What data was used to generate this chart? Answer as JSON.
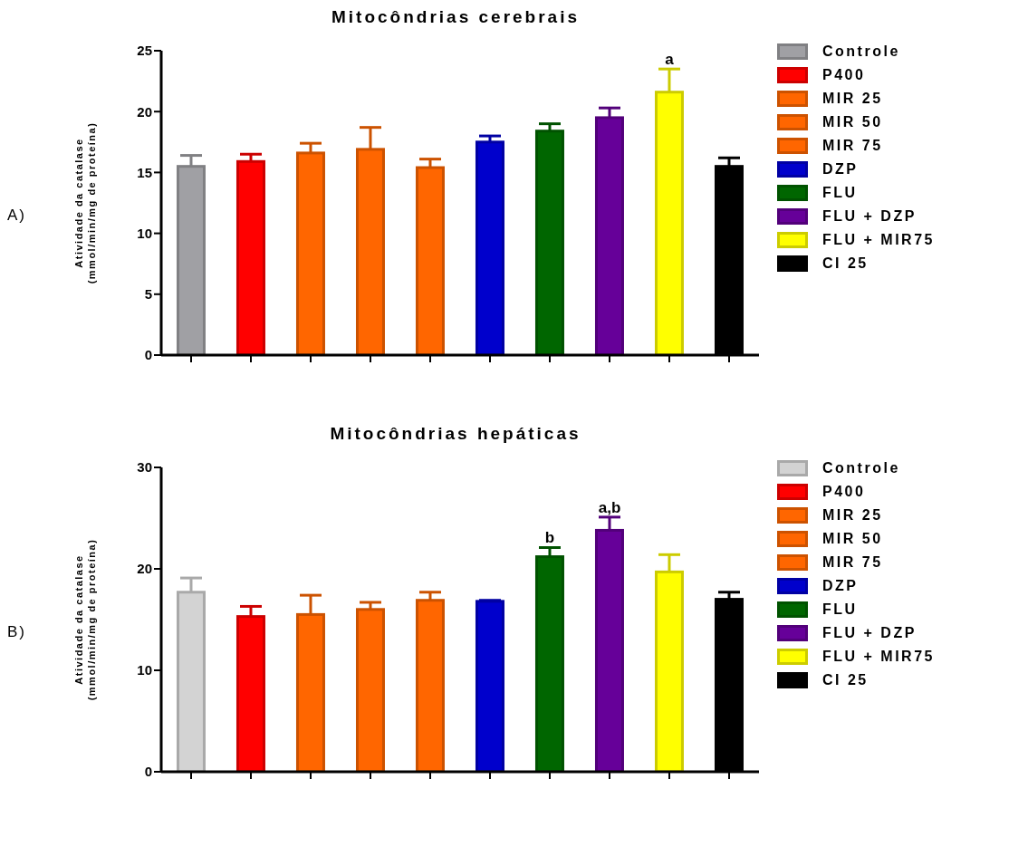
{
  "chart_data": [
    {
      "type": "bar",
      "title": "Mitocôndrias cerebrais",
      "ylabel": "Atividade da catalase\n(mmol/min/mg de proteína)",
      "categories": [
        null,
        null,
        null,
        null,
        null,
        null,
        null,
        null,
        null,
        null
      ],
      "series": [
        {
          "name": "Controle",
          "color": "#a0a0a4",
          "values": [
            15.5,
            null,
            null,
            null,
            null,
            null,
            null,
            null,
            null,
            null
          ],
          "errors": [
            [
              15.5,
              16.4
            ],
            null,
            null,
            null,
            null,
            null,
            null,
            null,
            null,
            null
          ]
        },
        {
          "name": "P400",
          "color": "#ff0000",
          "values": [
            null,
            15.9,
            null,
            null,
            null,
            null,
            null,
            null,
            null,
            null
          ],
          "errors": [
            null,
            [
              15.9,
              16.5
            ],
            null,
            null,
            null,
            null,
            null,
            null,
            null,
            null
          ]
        },
        {
          "name": "MIR 25",
          "color": "#ff6600",
          "values": [
            null,
            null,
            16.6,
            null,
            null,
            null,
            null,
            null,
            null,
            null
          ],
          "errors": [
            null,
            null,
            [
              16.6,
              17.4
            ],
            null,
            null,
            null,
            null,
            null,
            null,
            null
          ]
        },
        {
          "name": "MIR 50",
          "color": "#ff6600",
          "values": [
            null,
            null,
            null,
            16.9,
            null,
            null,
            null,
            null,
            null,
            null
          ],
          "errors": [
            null,
            null,
            null,
            [
              16.9,
              18.7
            ],
            null,
            null,
            null,
            null,
            null,
            null
          ]
        },
        {
          "name": "MIR 75",
          "color": "#ff6600",
          "values": [
            null,
            null,
            null,
            null,
            15.4,
            null,
            null,
            null,
            null,
            null
          ],
          "errors": [
            null,
            null,
            null,
            null,
            [
              15.4,
              16.1
            ],
            null,
            null,
            null,
            null,
            null
          ]
        },
        {
          "name": "DZP",
          "color": "#0000cc",
          "values": [
            null,
            null,
            null,
            null,
            null,
            17.5,
            null,
            null,
            null,
            null
          ],
          "errors": [
            null,
            null,
            null,
            null,
            null,
            [
              17.5,
              18.0
            ],
            null,
            null,
            null,
            null
          ]
        },
        {
          "name": "FLU",
          "color": "#006600",
          "values": [
            null,
            null,
            null,
            null,
            null,
            null,
            18.4,
            null,
            null,
            null
          ],
          "errors": [
            null,
            null,
            null,
            null,
            null,
            null,
            [
              18.4,
              19.0
            ],
            null,
            null,
            null
          ]
        },
        {
          "name": "FLU + DZP",
          "color": "#660099",
          "values": [
            null,
            null,
            null,
            null,
            null,
            null,
            null,
            19.5,
            null,
            null
          ],
          "errors": [
            null,
            null,
            null,
            null,
            null,
            null,
            null,
            [
              19.5,
              20.3
            ],
            null,
            null
          ]
        },
        {
          "name": "FLU + MIR75",
          "color": "#ffff00",
          "values": [
            null,
            null,
            null,
            null,
            null,
            null,
            null,
            null,
            21.6,
            null
          ],
          "errors": [
            null,
            null,
            null,
            null,
            null,
            null,
            null,
            null,
            [
              21.6,
              23.5
            ],
            null
          ]
        },
        {
          "name": "CI 25",
          "color": "#000000",
          "values": [
            null,
            null,
            null,
            null,
            null,
            null,
            null,
            null,
            null,
            15.5
          ],
          "errors": [
            null,
            null,
            null,
            null,
            null,
            null,
            null,
            null,
            null,
            [
              15.5,
              16.2
            ]
          ]
        }
      ],
      "ylim": [
        0,
        25
      ],
      "yticks": [
        0,
        5,
        10,
        15,
        20,
        25
      ],
      "tick_labels": "y",
      "legend": "right",
      "annotations": [
        "A)",
        {
          "text": "a",
          "y": 23.5
        }
      ]
    },
    {
      "type": "bar",
      "title": "Mitocôndrias hepáticas",
      "ylabel": "Atividade da catalase\n(mmol/min/mg de proteína)",
      "categories": [
        null,
        null,
        null,
        null,
        null,
        null,
        null,
        null,
        null,
        null
      ],
      "series": [
        {
          "name": "Controle",
          "color": "#d3d3d3",
          "values": [
            17.7,
            null,
            null,
            null,
            null,
            null,
            null,
            null,
            null,
            null
          ],
          "errors": [
            [
              17.7,
              19.1
            ],
            null,
            null,
            null,
            null,
            null,
            null,
            null,
            null,
            null
          ]
        },
        {
          "name": "P400",
          "color": "#ff0000",
          "values": [
            null,
            15.3,
            null,
            null,
            null,
            null,
            null,
            null,
            null,
            null
          ],
          "errors": [
            null,
            [
              15.3,
              16.3
            ],
            null,
            null,
            null,
            null,
            null,
            null,
            null,
            null
          ]
        },
        {
          "name": "MIR 25",
          "color": "#ff6600",
          "values": [
            null,
            null,
            15.5,
            null,
            null,
            null,
            null,
            null,
            null,
            null
          ],
          "errors": [
            null,
            null,
            [
              15.5,
              17.4
            ],
            null,
            null,
            null,
            null,
            null,
            null,
            null
          ]
        },
        {
          "name": "MIR 50",
          "color": "#ff6600",
          "values": [
            null,
            null,
            null,
            16.0,
            null,
            null,
            null,
            null,
            null,
            null
          ],
          "errors": [
            null,
            null,
            null,
            [
              16.0,
              16.7
            ],
            null,
            null,
            null,
            null,
            null,
            null
          ]
        },
        {
          "name": "MIR 75",
          "color": "#ff6600",
          "values": [
            null,
            null,
            null,
            null,
            16.9,
            null,
            null,
            null,
            null,
            null
          ],
          "errors": [
            null,
            null,
            null,
            null,
            [
              16.9,
              17.7
            ],
            null,
            null,
            null,
            null,
            null
          ]
        },
        {
          "name": "DZP",
          "color": "#0000cc",
          "values": [
            null,
            null,
            null,
            null,
            null,
            16.8,
            null,
            null,
            null,
            null
          ],
          "errors": [
            null,
            null,
            null,
            null,
            null,
            [
              16.8,
              16.9
            ],
            null,
            null,
            null,
            null
          ]
        },
        {
          "name": "FLU",
          "color": "#006600",
          "values": [
            null,
            null,
            null,
            null,
            null,
            null,
            21.2,
            null,
            null,
            null
          ],
          "errors": [
            null,
            null,
            null,
            null,
            null,
            null,
            [
              21.2,
              22.1
            ],
            null,
            null,
            null
          ]
        },
        {
          "name": "FLU + DZP",
          "color": "#660099",
          "values": [
            null,
            null,
            null,
            null,
            null,
            null,
            null,
            23.8,
            null,
            null
          ],
          "errors": [
            null,
            null,
            null,
            null,
            null,
            null,
            null,
            [
              23.8,
              25.1
            ],
            null,
            null
          ]
        },
        {
          "name": "FLU + MIR75",
          "color": "#ffff00",
          "values": [
            null,
            null,
            null,
            null,
            null,
            null,
            null,
            null,
            19.7,
            null
          ],
          "errors": [
            null,
            null,
            null,
            null,
            null,
            null,
            null,
            null,
            [
              19.7,
              21.4
            ],
            null
          ]
        },
        {
          "name": "CI 25",
          "color": "#000000",
          "values": [
            null,
            null,
            null,
            null,
            null,
            null,
            null,
            null,
            null,
            17.0
          ],
          "errors": [
            null,
            null,
            null,
            null,
            null,
            null,
            null,
            null,
            null,
            [
              17.0,
              17.7
            ]
          ]
        }
      ],
      "ylim": [
        0,
        30
      ],
      "yticks": [
        0,
        10,
        20,
        30
      ],
      "tick_labels": "y",
      "legend": "right",
      "annotations": [
        "B)",
        {
          "text": "b",
          "y": 22.1
        },
        {
          "text": "a,b",
          "y": 25.1
        }
      ]
    }
  ]
}
